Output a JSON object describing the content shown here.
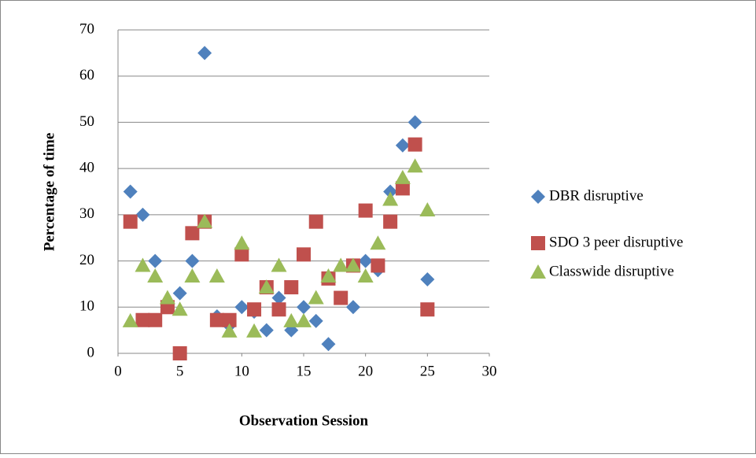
{
  "chart_data": {
    "type": "scatter",
    "xlabel": "Observation Session",
    "ylabel": "Percentage of time",
    "xlim": [
      0,
      30
    ],
    "xticks": [
      0,
      5,
      10,
      15,
      20,
      25,
      30
    ],
    "ylim": [
      0,
      70
    ],
    "yticks": [
      0,
      10,
      20,
      30,
      40,
      50,
      60,
      70
    ],
    "grid": true,
    "legend": "right",
    "series": [
      {
        "name": "DBR disruptive",
        "color": "#4f81bd",
        "marker": "diamond",
        "x": [
          1,
          2,
          3,
          4,
          5,
          6,
          7,
          8,
          9,
          10,
          11,
          12,
          13,
          14,
          15,
          16,
          17,
          18,
          19,
          20,
          21,
          22,
          23,
          24,
          25
        ],
        "values": [
          35,
          30,
          20,
          10,
          13,
          20,
          65,
          8,
          6,
          10,
          9,
          5,
          12,
          5,
          10,
          7,
          2,
          12,
          10,
          20,
          18,
          35,
          45,
          50,
          16
        ]
      },
      {
        "name": "SDO 3 peer disruptive",
        "color": "#c0504d",
        "marker": "square",
        "x": [
          1,
          2,
          3,
          4,
          5,
          6,
          7,
          8,
          9,
          10,
          11,
          12,
          13,
          14,
          15,
          16,
          17,
          18,
          19,
          20,
          21,
          22,
          23,
          24,
          25
        ],
        "values": [
          28.5,
          7.2,
          7.2,
          10,
          0,
          26,
          28.5,
          7.2,
          7.2,
          21.4,
          9.5,
          14.3,
          9.5,
          14.3,
          21.4,
          28.5,
          16.2,
          12,
          19,
          30.9,
          19,
          28.5,
          35.7,
          45.2,
          9.5
        ]
      },
      {
        "name": "Classwide disruptive",
        "color": "#9bbb59",
        "marker": "triangle",
        "x": [
          1,
          2,
          3,
          4,
          5,
          6,
          7,
          8,
          9,
          10,
          11,
          12,
          13,
          14,
          15,
          16,
          17,
          18,
          19,
          20,
          21,
          22,
          23,
          24,
          25
        ],
        "values": [
          7,
          19,
          16.7,
          12,
          9.5,
          16.7,
          28.5,
          16.7,
          4.8,
          23.8,
          4.8,
          14.3,
          19,
          7,
          7,
          12,
          16.7,
          19,
          19,
          16.7,
          23.8,
          33.3,
          38,
          40.5,
          31
        ]
      }
    ]
  }
}
